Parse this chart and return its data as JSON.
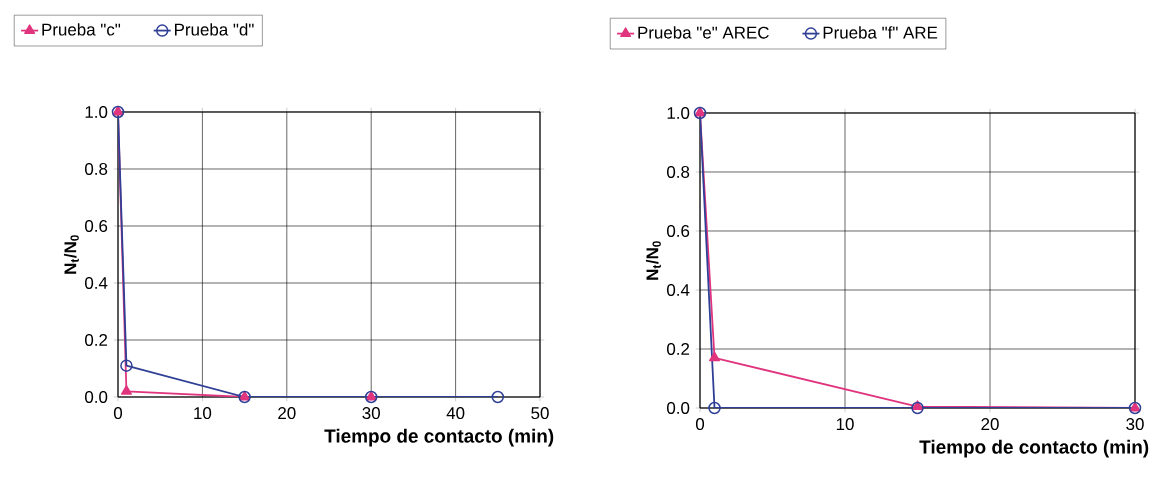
{
  "chart_data": [
    {
      "type": "line",
      "xlabel": "Tiempo de contacto (min)",
      "ylabel": "N$_{t}$/N$_{0}$",
      "xlim": [
        0,
        50
      ],
      "ylim": [
        0,
        1
      ],
      "xticks": [
        0,
        10,
        20,
        30,
        40,
        50
      ],
      "yticks": [
        {
          "value": 0,
          "label": "0.0"
        },
        {
          "value": 0.2,
          "label": "0.2"
        },
        {
          "value": 0.4,
          "label": "0.4"
        },
        {
          "value": 0.6,
          "label": "0.6"
        },
        {
          "value": 0.8,
          "label": "0.8"
        },
        {
          "value": 1,
          "label": "1.0"
        }
      ],
      "grid": true,
      "legend": "top",
      "line_style": "solid",
      "series": [
        {
          "name": "Prueba \"c\"",
          "color": "#e0357e",
          "marker": "triangle",
          "x": [
            0,
            1,
            15,
            30
          ],
          "values": [
            1,
            0.02,
            0,
            0
          ]
        },
        {
          "name": "Prueba \"d\"",
          "color": "#2f3f96",
          "marker": "circle",
          "x": [
            0,
            1,
            15,
            30,
            45
          ],
          "values": [
            1,
            0.11,
            0,
            0,
            0
          ]
        }
      ]
    },
    {
      "type": "line",
      "xlabel": "Tiempo de contacto (min)",
      "ylabel": "N$_{t}$/N$_{0}$",
      "xlim": [
        0,
        30
      ],
      "ylim": [
        0,
        1
      ],
      "xticks": [
        0,
        10,
        20,
        30
      ],
      "yticks": [
        {
          "value": 0,
          "label": "0.0"
        },
        {
          "value": 0.2,
          "label": "0.2"
        },
        {
          "value": 0.4,
          "label": "0.4"
        },
        {
          "value": 0.6,
          "label": "0.6"
        },
        {
          "value": 0.8,
          "label": "0.8"
        },
        {
          "value": 1,
          "label": "1.0"
        }
      ],
      "grid": true,
      "legend": "top",
      "line_style": "solid",
      "series": [
        {
          "name": "Prueba \"e\" AREC",
          "color": "#e0357e",
          "marker": "triangle",
          "x": [
            0,
            1,
            15,
            30
          ],
          "values": [
            1,
            0.17,
            0.005,
            0
          ]
        },
        {
          "name": "Prueba \"f\" ARE",
          "color": "#2f3f96",
          "marker": "circle",
          "x": [
            0,
            1,
            15,
            30
          ],
          "values": [
            1,
            0,
            0,
            0
          ]
        }
      ]
    }
  ]
}
